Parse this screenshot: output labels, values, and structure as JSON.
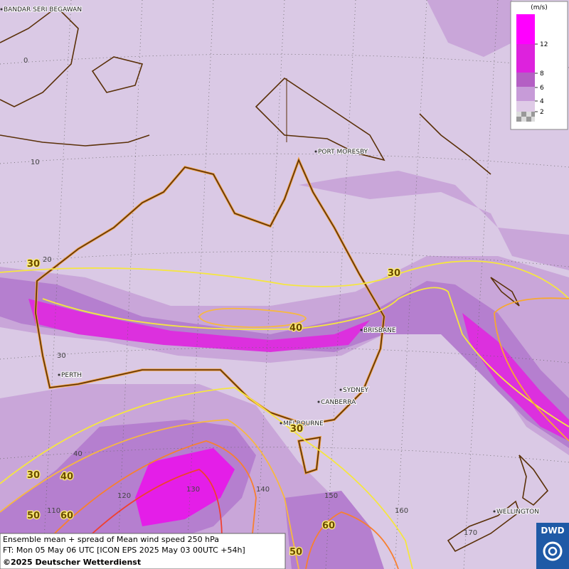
{
  "map": {
    "title": "Ensemble mean + spread of Mean wind speed 250 hPa",
    "forecast": "FT: Mon 05 May 06 UTC [ICON EPS 2025 May 03 00UTC +54h]",
    "copyright": "©2025 Deutscher Wetterdienst",
    "logo": "DWD",
    "cities": [
      "BANDAR SERI BEGAWAN",
      "PORT MORESBY",
      "BRISBANE",
      "PERTH",
      "SYDNEY",
      "CANBERRA",
      "MELBOURNE",
      "WELLINGTON"
    ],
    "lat_labels": [
      "0",
      "10",
      "20",
      "30",
      "40"
    ],
    "lon_labels": [
      "110",
      "120",
      "130",
      "140",
      "150",
      "160",
      "170"
    ],
    "contour_labels": [
      30,
      30,
      40,
      30,
      30,
      40,
      50,
      60,
      60,
      50
    ],
    "legend": {
      "unit": "(m/s)",
      "levels": [
        12,
        8,
        6,
        4,
        2
      ]
    }
  }
}
